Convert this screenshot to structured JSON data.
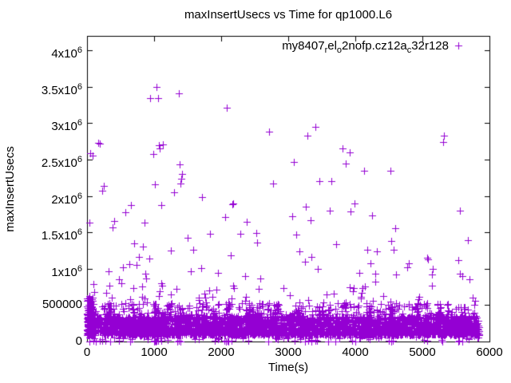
{
  "chart_data": {
    "type": "scatter",
    "title": "maxInsertUsecs vs Time for qp1000.L6",
    "xlabel": "Time(s)",
    "ylabel": "maxInsertUsecs",
    "xlim": [
      0,
      6000
    ],
    "ylim": [
      0,
      4200000
    ],
    "grid": false,
    "legend_position": "top-right-inside",
    "axis_color": "#000000",
    "background_color": "#ffffff",
    "xticks": [
      {
        "v": 0,
        "label": "0"
      },
      {
        "v": 1000,
        "label": "1000"
      },
      {
        "v": 2000,
        "label": "2000"
      },
      {
        "v": 3000,
        "label": "3000"
      },
      {
        "v": 4000,
        "label": "4000"
      },
      {
        "v": 5000,
        "label": "5000"
      },
      {
        "v": 6000,
        "label": "6000"
      }
    ],
    "yticks": [
      {
        "v": 0,
        "label": "0"
      },
      {
        "v": 500000,
        "label": "500000"
      },
      {
        "v": 1000000,
        "label": "1x10^6"
      },
      {
        "v": 1500000,
        "label": "1.5x10^6"
      },
      {
        "v": 2000000,
        "label": "2x10^6"
      },
      {
        "v": 2500000,
        "label": "2.5x10^6"
      },
      {
        "v": 3000000,
        "label": "3x10^6"
      },
      {
        "v": 3500000,
        "label": "3.5x10^6"
      },
      {
        "v": 4000000,
        "label": "4x10^6"
      }
    ],
    "series": [
      {
        "name": "my8407_rel_o2nofp.cz12a_c32r128",
        "label_segments": [
          {
            "t": "my8407"
          },
          {
            "t": "r",
            "sub": true
          },
          {
            "t": "el"
          },
          {
            "t": "o",
            "sub": true
          },
          {
            "t": "2nofp.cz12a"
          },
          {
            "t": "c",
            "sub": true
          },
          {
            "t": "32r128"
          }
        ],
        "marker": {
          "shape": "plus",
          "color": "#9400d3",
          "size": 9
        },
        "points_high": [
          [
            36,
            1630000
          ],
          [
            48,
            2590000
          ],
          [
            83,
            2560000
          ],
          [
            95,
            790000
          ],
          [
            167,
            2730000
          ],
          [
            190,
            2720000
          ],
          [
            226,
            2070000
          ],
          [
            250,
            2140000
          ],
          [
            321,
            960000
          ],
          [
            333,
            770000
          ],
          [
            381,
            1570000
          ],
          [
            405,
            1660000
          ],
          [
            475,
            850000
          ],
          [
            512,
            800000
          ],
          [
            536,
            1020000
          ],
          [
            571,
            1780000
          ],
          [
            631,
            1060000
          ],
          [
            655,
            1870000
          ],
          [
            702,
            1350000
          ],
          [
            738,
            1050000
          ],
          [
            774,
            1160000
          ],
          [
            833,
            1300000
          ],
          [
            857,
            1630000
          ],
          [
            869,
            930000
          ],
          [
            880,
            870000
          ],
          [
            929,
            1140000
          ],
          [
            940,
            3340000
          ],
          [
            988,
            2580000
          ],
          [
            1012,
            2160000
          ],
          [
            1036,
            3500000
          ],
          [
            1060,
            3340000
          ],
          [
            1071,
            2700000
          ],
          [
            1083,
            2650000
          ],
          [
            1107,
            1870000
          ],
          [
            1131,
            2710000
          ],
          [
            1250,
            1250000
          ],
          [
            1298,
            2050000
          ],
          [
            1369,
            3410000
          ],
          [
            1381,
            2430000
          ],
          [
            1393,
            2170000
          ],
          [
            1405,
            2240000
          ],
          [
            1417,
            2300000
          ],
          [
            1500,
            1430000
          ],
          [
            1548,
            960000
          ],
          [
            1583,
            1260000
          ],
          [
            1702,
            1010000
          ],
          [
            1714,
            1990000
          ],
          [
            1833,
            1480000
          ],
          [
            1952,
            940000
          ],
          [
            2060,
            1710000
          ],
          [
            2083,
            3210000
          ],
          [
            2143,
            1180000
          ],
          [
            2167,
            1890000
          ],
          [
            2178,
            1900000
          ],
          [
            2286,
            1480000
          ],
          [
            2357,
            900000
          ],
          [
            2381,
            1640000
          ],
          [
            2524,
            1490000
          ],
          [
            2536,
            1360000
          ],
          [
            2583,
            870000
          ],
          [
            2714,
            2880000
          ],
          [
            2774,
            2170000
          ],
          [
            3060,
            1720000
          ],
          [
            3083,
            2470000
          ],
          [
            3119,
            1470000
          ],
          [
            3167,
            1240000
          ],
          [
            3250,
            1100000
          ],
          [
            3262,
            1850000
          ],
          [
            3286,
            2830000
          ],
          [
            3333,
            1670000
          ],
          [
            3340,
            1160000
          ],
          [
            3405,
            2950000
          ],
          [
            3440,
            1000000
          ],
          [
            3464,
            2200000
          ],
          [
            3619,
            1800000
          ],
          [
            3643,
            2200000
          ],
          [
            3714,
            1340000
          ],
          [
            3810,
            2650000
          ],
          [
            3857,
            2450000
          ],
          [
            3917,
            2600000
          ],
          [
            3929,
            1790000
          ],
          [
            3988,
            1900000
          ],
          [
            4060,
            940000
          ],
          [
            4131,
            2350000
          ],
          [
            4179,
            1260000
          ],
          [
            4226,
            1070000
          ],
          [
            4250,
            1730000
          ],
          [
            4298,
            930000
          ],
          [
            4321,
            1240000
          ],
          [
            4524,
            2350000
          ],
          [
            4536,
            1380000
          ],
          [
            4571,
            1260000
          ],
          [
            4595,
            1560000
          ],
          [
            4607,
            920000
          ],
          [
            4774,
            1020000
          ],
          [
            4798,
            1070000
          ],
          [
            5071,
            1150000
          ],
          [
            5085,
            1130000
          ],
          [
            5143,
            920000
          ],
          [
            5155,
            1000000
          ],
          [
            5310,
            2740000
          ],
          [
            5321,
            2830000
          ],
          [
            5540,
            1120000
          ],
          [
            5560,
            1800000
          ],
          [
            5565,
            930000
          ],
          [
            5590,
            900000
          ],
          [
            5679,
            1390000
          ],
          [
            5700,
            850000
          ],
          [
            5750,
            600000
          ]
        ],
        "points_low": [
          [
            30,
            5000
          ],
          [
            100,
            8000
          ],
          [
            130,
            3000
          ],
          [
            190,
            10000
          ],
          [
            270,
            6000
          ],
          [
            345,
            4000
          ],
          [
            475,
            9000
          ],
          [
            640,
            5000
          ],
          [
            1000,
            4000
          ],
          [
            1010,
            8000
          ],
          [
            1025,
            3000
          ],
          [
            1040,
            6000
          ],
          [
            1060,
            9000
          ],
          [
            1350,
            5000
          ],
          [
            1370,
            7000
          ],
          [
            1395,
            4000
          ],
          [
            2050,
            6000
          ],
          [
            2070,
            3000
          ],
          [
            2090,
            8000
          ],
          [
            2110,
            5000
          ],
          [
            2150,
            7000
          ],
          [
            2700,
            5000
          ],
          [
            3100,
            8000
          ],
          [
            3250,
            4000
          ],
          [
            3300,
            6000
          ],
          [
            3350,
            3000
          ],
          [
            3400,
            7000
          ],
          [
            3700,
            5000
          ],
          [
            3950,
            6000
          ],
          [
            4000,
            4000
          ],
          [
            4500,
            7000
          ],
          [
            4530,
            3000
          ],
          [
            4560,
            8000
          ],
          [
            5300,
            5000
          ],
          [
            5550,
            6000
          ],
          [
            5600,
            4000
          ]
        ],
        "generated": {
          "seed": 11,
          "layers": [
            {
              "name": "band-core",
              "n": 3100,
              "t": [
                5,
                5848
              ],
              "y": [
                90000,
                340000
              ],
              "bias": 1.4
            },
            {
              "name": "band-hairs",
              "n": 330,
              "t": [
                5,
                5848
              ],
              "y": [
                330000,
                530000
              ],
              "bias": 2.0
            },
            {
              "name": "mid-scatter",
              "n": 80,
              "t": [
                20,
                5848
              ],
              "y": [
                450000,
                820000
              ],
              "bias": 1.6
            },
            {
              "name": "low-floor",
              "n": 80,
              "t": [
                10,
                5848
              ],
              "y": [
                0,
                90000
              ],
              "bias": 0.8
            },
            {
              "name": "start-spike",
              "n": 130,
              "t": [
                0,
                90
              ],
              "y": [
                80000,
                630000
              ],
              "bias": 1.6
            }
          ],
          "cluster_spikes": {
            "centers": [
              60,
              330,
              700,
              1020,
              1230,
              1400,
              1750,
              2100,
              2450,
              2560,
              2800,
              3150,
              3500,
              3850,
              4200,
              4550,
              4900,
              5250,
              5600
            ],
            "n_each": 13,
            "t_spread": 35,
            "y_min": 300000,
            "y_max": 540000
          }
        }
      }
    ]
  }
}
